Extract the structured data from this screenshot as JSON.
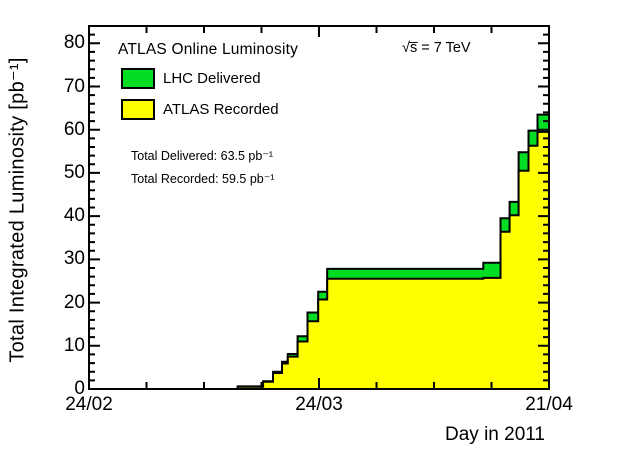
{
  "chart_data": {
    "type": "area",
    "title": "ATLAS Online Luminosity",
    "energy": "√s̅ = 7 TeV",
    "xlabel": "Day in 2011",
    "ylabel": "Total Integrated Luminosity [pb⁻¹]",
    "total_delivered_pb": 63.5,
    "total_recorded_pb": 59.5,
    "totals": [
      "Total Delivered: 63.5 pb⁻¹",
      "Total Recorded: 59.5 pb⁻¹"
    ],
    "legend": [
      {
        "label": "LHC Delivered",
        "color": "#00dd22"
      },
      {
        "label": "ATLAS Recorded",
        "color": "#ffff00"
      }
    ],
    "background_color": "#ffffff",
    "frame_color": "#000000",
    "x": {
      "min": 0,
      "max": 56,
      "unit": "days since 24/02",
      "major_ticks": [
        {
          "day": 0,
          "label": "24/02"
        },
        {
          "day": 28,
          "label": "24/03"
        },
        {
          "day": 56,
          "label": "21/04"
        }
      ],
      "minor_step": 7
    },
    "y": {
      "min": 0,
      "max": 84,
      "tick_step": 10,
      "minor_step": 2,
      "tick_labels": [
        "0",
        "10",
        "20",
        "30",
        "40",
        "50",
        "60",
        "70",
        "80"
      ]
    },
    "series": [
      {
        "name": "LHC Delivered",
        "color": "#00dd22",
        "points": [
          [
            0,
            0
          ],
          [
            18.1,
            0.6
          ],
          [
            21.2,
            1.8
          ],
          [
            22.4,
            4.0
          ],
          [
            23.5,
            6.3
          ],
          [
            24.2,
            8.1
          ],
          [
            25.4,
            12.2
          ],
          [
            26.6,
            17.7
          ],
          [
            27.9,
            22.5
          ],
          [
            29.0,
            27.8
          ],
          [
            48.0,
            29.2
          ],
          [
            50.1,
            39.5
          ],
          [
            51.2,
            43.3
          ],
          [
            52.3,
            54.8
          ],
          [
            53.5,
            59.8
          ],
          [
            54.6,
            63.5
          ],
          [
            56,
            63.5
          ]
        ]
      },
      {
        "name": "ATLAS Recorded",
        "color": "#ffff00",
        "points": [
          [
            0,
            0
          ],
          [
            18.1,
            0.5
          ],
          [
            21.2,
            1.7
          ],
          [
            22.4,
            3.7
          ],
          [
            23.5,
            5.9
          ],
          [
            24.2,
            7.5
          ],
          [
            25.4,
            11.0
          ],
          [
            26.6,
            15.7
          ],
          [
            27.9,
            20.7
          ],
          [
            29.0,
            25.5
          ],
          [
            48.0,
            25.7
          ],
          [
            50.1,
            36.4
          ],
          [
            51.2,
            40.2
          ],
          [
            52.3,
            50.5
          ],
          [
            53.5,
            56.3
          ],
          [
            54.6,
            59.5
          ],
          [
            56,
            59.5
          ]
        ]
      }
    ],
    "legend_position": "top-left",
    "grid": false
  }
}
